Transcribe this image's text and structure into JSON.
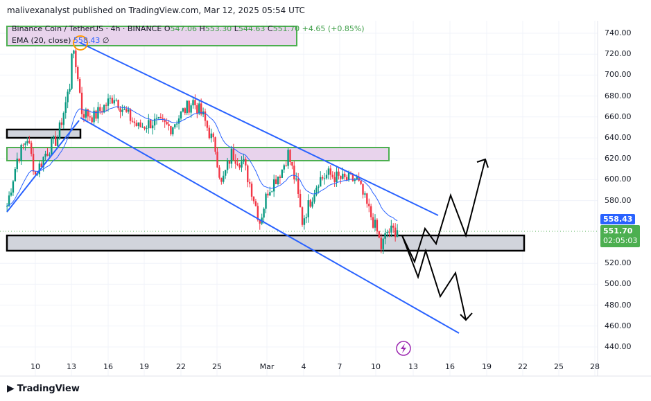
{
  "header": {
    "published": "malivexanalyst published on TradingView.com, Mar 12, 2025 05:54 UTC"
  },
  "legend": {
    "symbol": "Binance Coin / TetherUS · 4h · BINANCE",
    "o_label": "O",
    "o": "547.06",
    "h_label": "H",
    "h": "553.30",
    "l_label": "L",
    "l": "544.63",
    "c_label": "C",
    "c": "551.70",
    "change": "+4.65 (+0.85%)"
  },
  "indicator": {
    "label": "EMA (20, close)",
    "value": "558.43",
    "extra": "∅"
  },
  "price_tags": {
    "ema": "558.43",
    "last": "551.70",
    "countdown": "02:05:03"
  },
  "colors": {
    "up": "#089981",
    "down": "#f23645",
    "ema": "#2962ff",
    "channel": "#2962ff",
    "zone_fill": "#e1bee7",
    "zone_border": "#4caf50",
    "tag_last": "#4caf50",
    "tag_ema": "#2962ff"
  },
  "footer": {
    "brand": "TradingView"
  },
  "chart_data": {
    "type": "candlestick",
    "symbol": "BNBUSDT",
    "interval": "4h",
    "ylim": [
      430,
      750
    ],
    "yticks": [
      "740.00",
      "720.00",
      "700.00",
      "680.00",
      "660.00",
      "640.00",
      "620.00",
      "600.00",
      "580.00",
      "520.00",
      "500.00",
      "480.00",
      "460.00",
      "440.00"
    ],
    "xticks": [
      "10",
      "13",
      "16",
      "19",
      "22",
      "25",
      "Mar",
      "4",
      "7",
      "10",
      "13",
      "16",
      "19",
      "22",
      "25",
      "28"
    ],
    "approx_close_path": [
      [
        "2025-02-07T16:00",
        575
      ],
      [
        "2025-02-08T12:00",
        620
      ],
      [
        "2025-02-09T08:00",
        640
      ],
      [
        "2025-02-10T00:00",
        605
      ],
      [
        "2025-02-10T20:00",
        625
      ],
      [
        "2025-02-11T20:00",
        640
      ],
      [
        "2025-02-12T20:00",
        690
      ],
      [
        "2025-02-13T00:00",
        725
      ],
      [
        "2025-02-13T12:00",
        700
      ],
      [
        "2025-02-13T20:00",
        665
      ],
      [
        "2025-02-14T20:00",
        660
      ],
      [
        "2025-02-15T16:00",
        670
      ],
      [
        "2025-02-16T12:00",
        680
      ],
      [
        "2025-02-17T08:00",
        665
      ],
      [
        "2025-02-18T12:00",
        650
      ],
      [
        "2025-02-19T16:00",
        655
      ],
      [
        "2025-02-21T04:00",
        650
      ],
      [
        "2025-02-22T04:00",
        665
      ],
      [
        "2025-02-23T00:00",
        675
      ],
      [
        "2025-02-23T20:00",
        660
      ],
      [
        "2025-02-24T20:00",
        630
      ],
      [
        "2025-02-25T08:00",
        595
      ],
      [
        "2025-02-26T04:00",
        625
      ],
      [
        "2025-02-27T04:00",
        615
      ],
      [
        "2025-02-27T20:00",
        590
      ],
      [
        "2025-02-28T12:00",
        560
      ],
      [
        "2025-03-01T04:00",
        590
      ],
      [
        "2025-03-02T08:00",
        610
      ],
      [
        "2025-03-02T20:00",
        625
      ],
      [
        "2025-03-03T12:00",
        595
      ],
      [
        "2025-03-04T00:00",
        560
      ],
      [
        "2025-03-04T12:00",
        575
      ],
      [
        "2025-03-05T08:00",
        600
      ],
      [
        "2025-03-06T04:00",
        605
      ],
      [
        "2025-03-07T08:00",
        600
      ],
      [
        "2025-03-08T12:00",
        600
      ],
      [
        "2025-03-09T08:00",
        575
      ],
      [
        "2025-03-10T04:00",
        550
      ],
      [
        "2025-03-10T12:00",
        535
      ],
      [
        "2025-03-11T00:00",
        550
      ],
      [
        "2025-03-11T20:00",
        551.7
      ]
    ],
    "ema_period": 20
  }
}
